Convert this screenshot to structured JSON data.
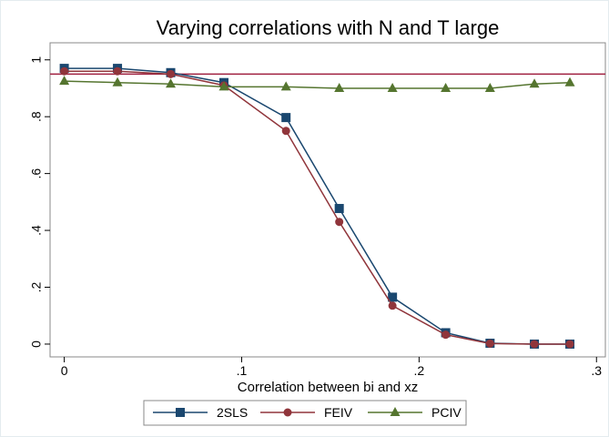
{
  "chart_data": {
    "type": "line",
    "title": "Varying correlations with N and T large",
    "x_label": "Correlation between bi and xz",
    "x": [
      0,
      0.03,
      0.06,
      0.09,
      0.125,
      0.155,
      0.185,
      0.215,
      0.24,
      0.265,
      0.285
    ],
    "series": [
      {
        "name": "2SLS",
        "color": "#1a476f",
        "marker": "square",
        "values": [
          0.97,
          0.97,
          0.955,
          0.92,
          0.797,
          0.477,
          0.165,
          0.04,
          0.003,
          0,
          0
        ]
      },
      {
        "name": "FEIV",
        "color": "#90353b",
        "marker": "circle",
        "values": [
          0.96,
          0.96,
          0.95,
          0.91,
          0.75,
          0.43,
          0.135,
          0.033,
          0.002,
          0,
          0
        ]
      },
      {
        "name": "PCIV",
        "color": "#55752f",
        "marker": "triangle",
        "values": [
          0.925,
          0.92,
          0.915,
          0.905,
          0.905,
          0.9,
          0.9,
          0.9,
          0.9,
          0.915,
          0.92
        ]
      }
    ],
    "reference_line": {
      "value": 0.95,
      "color": "#a02040"
    },
    "xlim": [
      -0.008,
      0.305
    ],
    "xticks": [
      0,
      {
        "value": 0.1,
        "label": ".1"
      },
      {
        "value": 0.2,
        "label": ".2"
      },
      {
        "value": 0.3,
        "label": ".3"
      }
    ],
    "ylim": [
      -0.045,
      1.06
    ],
    "yticks": [
      0,
      {
        "value": 0.2,
        "label": ".2"
      },
      {
        "value": 0.4,
        "label": ".4"
      },
      {
        "value": 0.6,
        "label": ".6"
      },
      {
        "value": 0.8,
        "label": ".8"
      },
      1
    ],
    "grid": false,
    "legend": "bottom"
  }
}
